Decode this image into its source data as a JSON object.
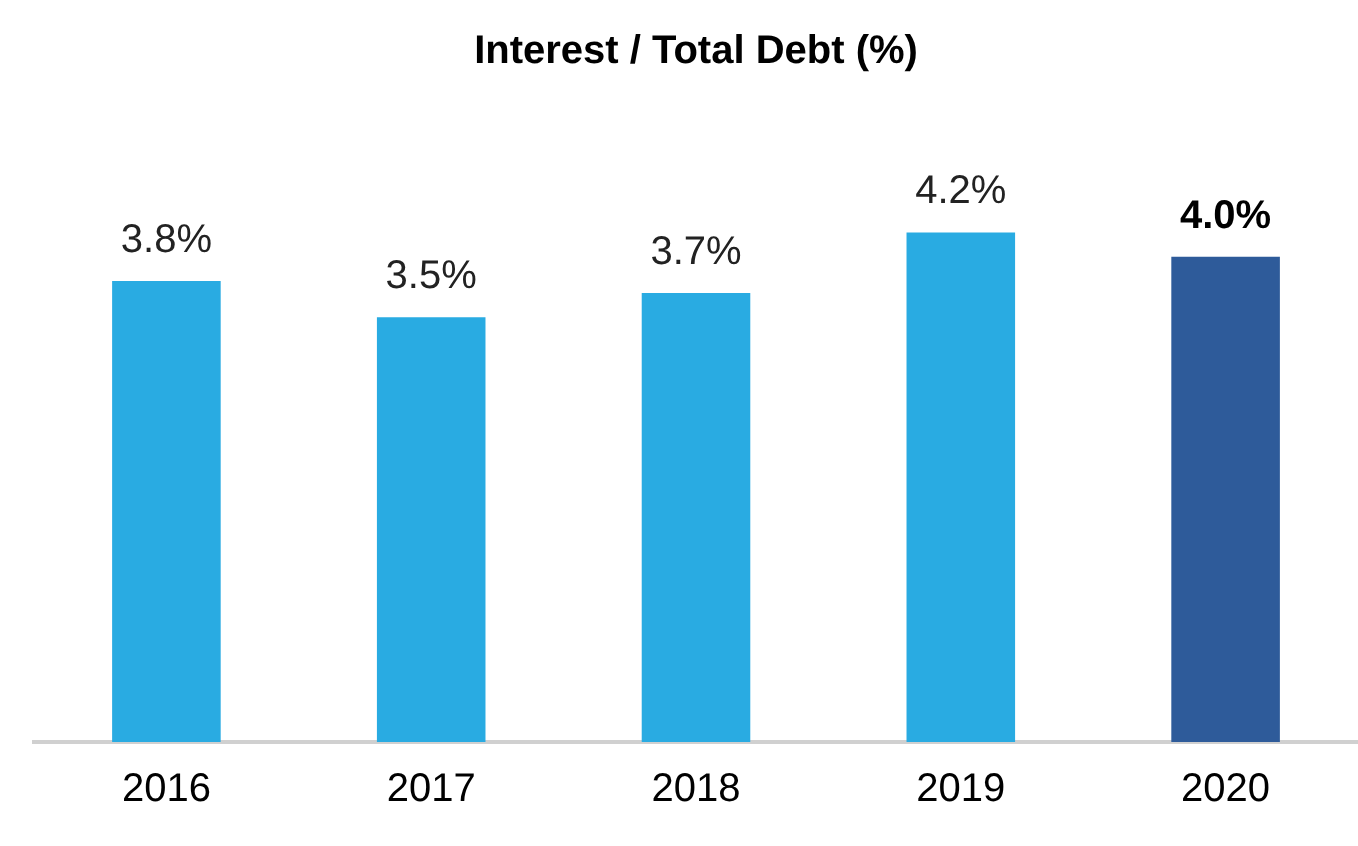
{
  "chart_data": {
    "type": "bar",
    "title": "Interest / Total Debt (%)",
    "categories": [
      "2016",
      "2017",
      "2018",
      "2019",
      "2020"
    ],
    "values": [
      3.8,
      3.5,
      3.7,
      4.2,
      4.0
    ],
    "colors": [
      "#29abe2",
      "#29abe2",
      "#29abe2",
      "#29abe2",
      "#2e5b9a"
    ],
    "value_labels": [
      "3.8%",
      "3.5%",
      "3.7%",
      "4.2%",
      "4.0%"
    ],
    "tick_labels": "x",
    "grid": false,
    "legend": false
  }
}
